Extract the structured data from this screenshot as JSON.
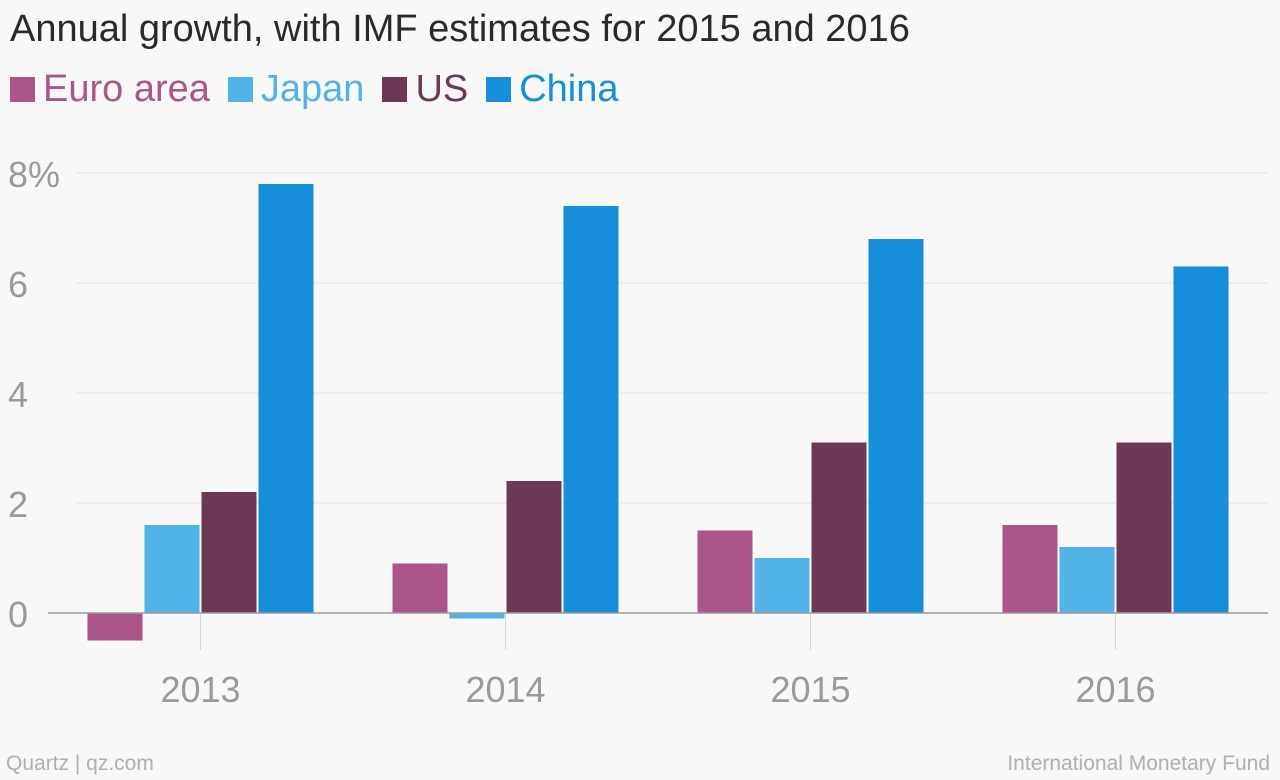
{
  "title": "Annual growth, with IMF estimates for 2015 and 2016",
  "footer": {
    "credit": "Quartz | qz.com",
    "source": "International Monetary Fund"
  },
  "chart_data": {
    "type": "bar",
    "categories": [
      "2013",
      "2014",
      "2015",
      "2016"
    ],
    "series": [
      {
        "name": "Euro area",
        "color": "#ac5588",
        "values": [
          -0.5,
          0.9,
          1.5,
          1.6
        ]
      },
      {
        "name": "Japan",
        "color": "#52b3e6",
        "values": [
          1.6,
          -0.1,
          1.0,
          1.2
        ]
      },
      {
        "name": "US",
        "color": "#6b3957",
        "values": [
          2.2,
          2.4,
          3.1,
          3.1
        ]
      },
      {
        "name": "China",
        "color": "#168ed9",
        "values": [
          7.8,
          7.4,
          6.8,
          6.3
        ]
      }
    ],
    "yticks": [
      {
        "value": 0,
        "label": "0"
      },
      {
        "value": 2,
        "label": "2"
      },
      {
        "value": 4,
        "label": "4"
      },
      {
        "value": 6,
        "label": "6"
      },
      {
        "value": 8,
        "label": "8%"
      }
    ],
    "ylim": [
      -0.7,
      8
    ],
    "grid": true,
    "legend_position": "top-left"
  }
}
